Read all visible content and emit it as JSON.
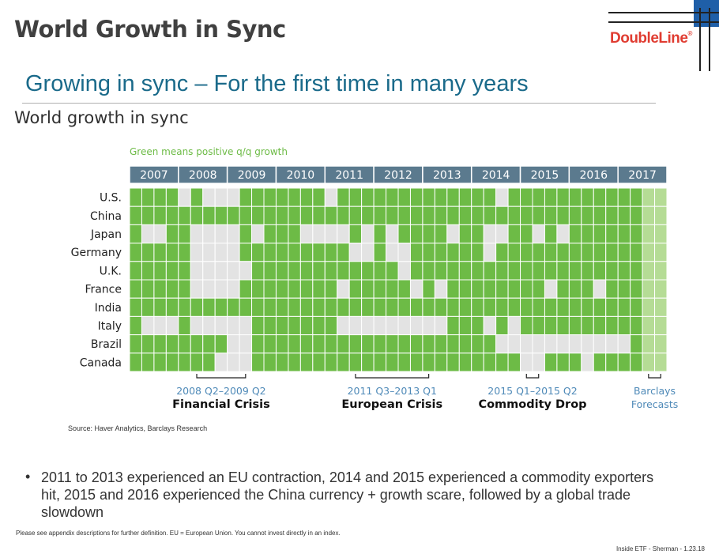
{
  "slide": {
    "title": "World Growth in Sync",
    "logo": "DoubleLine",
    "logo_mark": "®",
    "subtitle": "Growing in sync – For the first time in many years",
    "chart_heading": "World growth in sync",
    "source": "Source: Haver Analytics, Barclays Research",
    "bullet_symbol": "•",
    "bullet": "2011 to 2013 experienced an EU contraction, 2014 and 2015 experienced a commodity exporters hit, 2015 and 2016 experienced the China currency + growth scare, followed by a global trade slowdown",
    "footnote": "Please see appendix descriptions for further definition. EU = European Union. You cannot invest directly in an index.",
    "footer": "Inside ETF - Sherman - 1.23.18"
  },
  "colors": {
    "positive": "#6dbb46",
    "negative": "#e3e3e3",
    "forecast": "#b5dc95",
    "header": "#5b7a8e",
    "annotation": "#4f8ab8",
    "brand": "#e03c31"
  },
  "chart_data": {
    "type": "heatmap",
    "note": "Green means positive q/q growth",
    "years": [
      "2007",
      "2008",
      "2009",
      "2010",
      "2011",
      "2012",
      "2013",
      "2014",
      "2015",
      "2016",
      "2017"
    ],
    "quarters_per_year": 4,
    "countries": [
      "U.S.",
      "China",
      "Japan",
      "Germany",
      "U.K.",
      "France",
      "India",
      "Italy",
      "Brazil",
      "Canada"
    ],
    "value_legend": {
      "1": "positive q/q growth",
      "0": "non-positive q/q growth",
      "2": "forecast"
    },
    "matrix": [
      [
        1,
        1,
        1,
        1,
        0,
        1,
        0,
        0,
        0,
        1,
        1,
        1,
        1,
        1,
        1,
        1,
        0,
        1,
        1,
        1,
        1,
        1,
        1,
        1,
        1,
        1,
        1,
        1,
        1,
        1,
        0,
        1,
        1,
        1,
        1,
        1,
        1,
        1,
        1,
        1,
        1,
        1,
        2,
        2
      ],
      [
        1,
        1,
        1,
        1,
        1,
        1,
        1,
        1,
        1,
        1,
        1,
        1,
        1,
        1,
        1,
        1,
        1,
        1,
        1,
        1,
        1,
        1,
        1,
        1,
        1,
        1,
        1,
        1,
        1,
        1,
        1,
        1,
        1,
        1,
        1,
        1,
        1,
        1,
        1,
        1,
        1,
        1,
        2,
        2
      ],
      [
        1,
        0,
        0,
        1,
        1,
        0,
        0,
        0,
        0,
        1,
        0,
        1,
        1,
        1,
        0,
        0,
        0,
        0,
        1,
        0,
        1,
        0,
        1,
        1,
        1,
        1,
        0,
        1,
        1,
        0,
        0,
        1,
        1,
        0,
        1,
        0,
        1,
        1,
        1,
        1,
        1,
        1,
        2,
        2
      ],
      [
        1,
        1,
        1,
        1,
        1,
        0,
        0,
        0,
        0,
        1,
        1,
        1,
        1,
        1,
        1,
        1,
        1,
        1,
        0,
        0,
        1,
        0,
        0,
        1,
        1,
        1,
        1,
        1,
        1,
        0,
        1,
        1,
        1,
        1,
        1,
        1,
        1,
        1,
        1,
        1,
        1,
        1,
        2,
        2
      ],
      [
        1,
        1,
        1,
        1,
        1,
        0,
        0,
        0,
        0,
        0,
        1,
        1,
        1,
        1,
        1,
        1,
        1,
        1,
        1,
        1,
        1,
        1,
        0,
        1,
        1,
        1,
        1,
        1,
        1,
        1,
        1,
        1,
        1,
        1,
        1,
        1,
        1,
        1,
        1,
        1,
        1,
        1,
        2,
        2
      ],
      [
        1,
        1,
        1,
        1,
        1,
        0,
        0,
        0,
        0,
        1,
        1,
        1,
        1,
        1,
        1,
        1,
        1,
        0,
        1,
        1,
        1,
        1,
        1,
        0,
        1,
        0,
        1,
        1,
        1,
        1,
        1,
        1,
        1,
        1,
        0,
        1,
        1,
        1,
        0,
        1,
        1,
        1,
        2,
        2
      ],
      [
        1,
        1,
        1,
        1,
        1,
        1,
        1,
        1,
        1,
        1,
        1,
        1,
        1,
        1,
        1,
        1,
        1,
        1,
        1,
        1,
        1,
        1,
        1,
        1,
        1,
        1,
        1,
        1,
        1,
        1,
        1,
        1,
        1,
        1,
        1,
        1,
        1,
        1,
        1,
        1,
        1,
        1,
        2,
        2
      ],
      [
        1,
        0,
        0,
        0,
        1,
        0,
        0,
        0,
        0,
        0,
        1,
        1,
        1,
        1,
        1,
        1,
        1,
        0,
        0,
        0,
        0,
        0,
        0,
        0,
        0,
        0,
        1,
        1,
        1,
        0,
        1,
        0,
        1,
        1,
        1,
        1,
        1,
        1,
        1,
        1,
        1,
        1,
        2,
        2
      ],
      [
        1,
        1,
        1,
        1,
        1,
        1,
        1,
        1,
        0,
        0,
        1,
        1,
        1,
        1,
        1,
        1,
        1,
        1,
        1,
        1,
        1,
        1,
        1,
        1,
        1,
        1,
        1,
        1,
        1,
        1,
        0,
        0,
        0,
        0,
        0,
        0,
        0,
        0,
        0,
        0,
        0,
        1,
        2,
        2
      ],
      [
        1,
        1,
        1,
        1,
        1,
        1,
        1,
        0,
        0,
        0,
        1,
        1,
        1,
        1,
        1,
        1,
        1,
        1,
        1,
        1,
        1,
        1,
        1,
        1,
        1,
        1,
        1,
        1,
        1,
        1,
        1,
        1,
        0,
        0,
        1,
        1,
        1,
        0,
        1,
        1,
        1,
        1,
        2,
        2
      ]
    ],
    "annotations": [
      {
        "range": "2008 Q2–2009 Q2",
        "label": "Financial Crisis",
        "from": [
          2008,
          2
        ],
        "to": [
          2009,
          2
        ]
      },
      {
        "range": "2011 Q3–2013 Q1",
        "label": "European Crisis",
        "from": [
          2011,
          3
        ],
        "to": [
          2013,
          1
        ]
      },
      {
        "range": "2015 Q1–2015 Q2",
        "label": "Commodity Drop",
        "from": [
          2015,
          1
        ],
        "to": [
          2015,
          2
        ]
      },
      {
        "range": "Barclays",
        "label": "Forecasts",
        "from": [
          2017,
          3
        ],
        "to": [
          2017,
          4
        ],
        "blue_label": true
      }
    ]
  }
}
